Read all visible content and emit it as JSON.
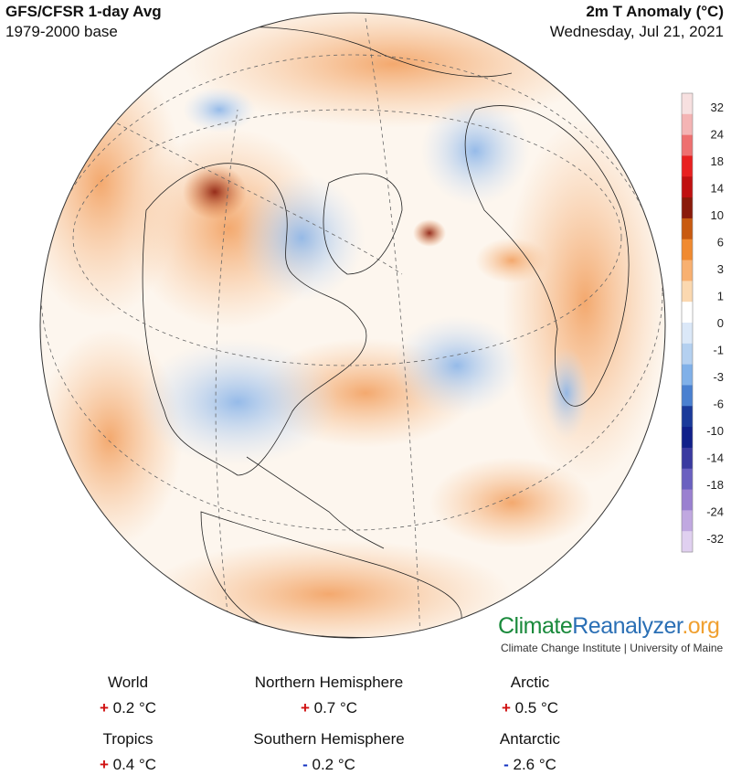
{
  "header": {
    "title": "GFS/CFSR 1-day Avg",
    "base": "1979-2000 base",
    "variable": "2m T Anomaly (°C)",
    "date": "Wednesday, Jul 21, 2021"
  },
  "colorbar": {
    "ticks": [
      "32",
      "24",
      "18",
      "14",
      "10",
      "6",
      "3",
      "1",
      "0",
      "-1",
      "-3",
      "-6",
      "-10",
      "-14",
      "-18",
      "-24",
      "-32"
    ],
    "colors": [
      "#f7e0e0",
      "#f4b4b4",
      "#ee7070",
      "#e82020",
      "#c01010",
      "#8a1a0a",
      "#c85a10",
      "#f08a30",
      "#f8b070",
      "#fbd8b0",
      "#ffffff",
      "#dbe8f8",
      "#b4d0f0",
      "#80b0e8",
      "#4a80d0",
      "#1a3a9a",
      "#10208a",
      "#3a3aa0",
      "#6a60c0",
      "#9a80d0",
      "#c0a8e0",
      "#e0d0f0"
    ]
  },
  "brand": {
    "part1": "Climate",
    "part2": "Reanalyzer",
    "part3": ".org",
    "subtitle": "Climate Change Institute | University of Maine",
    "colors": {
      "part1": "#1a8a3c",
      "part2": "#2a6fb5",
      "part3": "#f0a030"
    }
  },
  "stats": [
    {
      "region": "World",
      "sign": "+",
      "value": "0.2 °C"
    },
    {
      "region": "Northern Hemisphere",
      "sign": "+",
      "value": "0.7 °C"
    },
    {
      "region": "Arctic",
      "sign": "+",
      "value": "0.5 °C"
    },
    {
      "region": "Tropics",
      "sign": "+",
      "value": "0.4 °C"
    },
    {
      "region": "Southern Hemisphere",
      "sign": "-",
      "value": "0.2 °C"
    },
    {
      "region": "Antarctic",
      "sign": "-",
      "value": "2.6 °C"
    }
  ]
}
